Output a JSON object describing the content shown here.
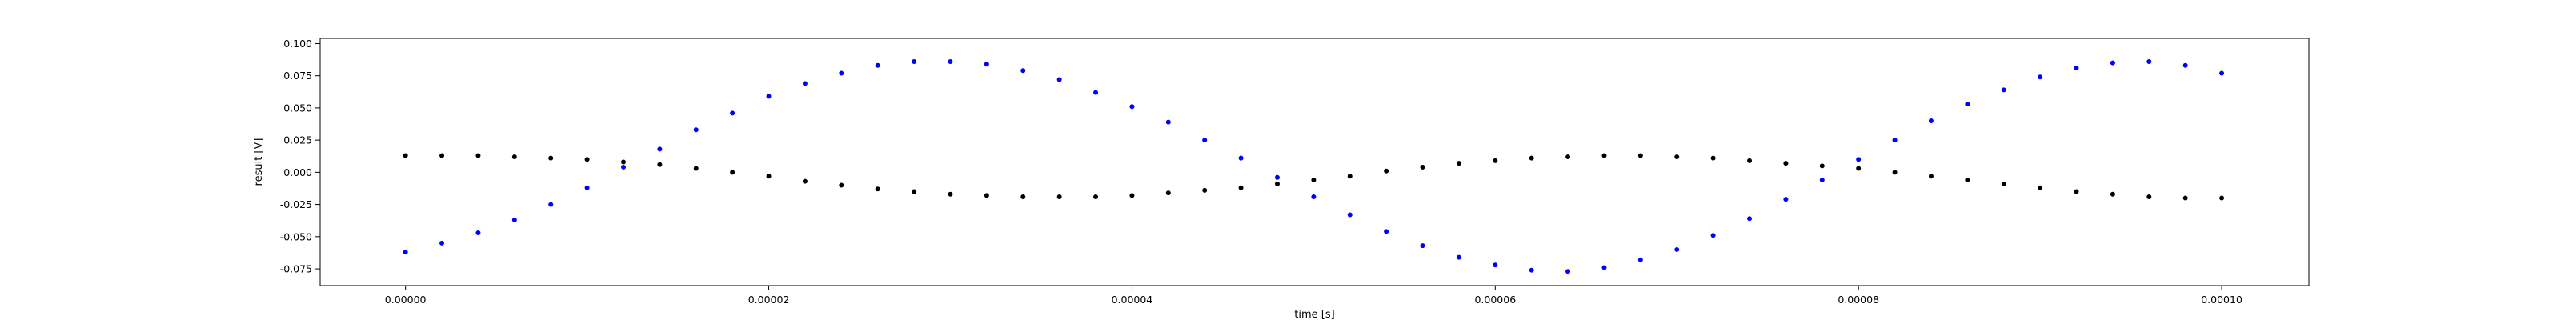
{
  "chart_data": {
    "type": "scatter",
    "title": "",
    "xlabel": "time [s]",
    "ylabel": "result [V]",
    "xlim": [
      -4.7e-06,
      0.0001048
    ],
    "ylim": [
      -0.088,
      0.104
    ],
    "grid": false,
    "x_ticks": [
      0.0,
      2e-05,
      4e-05,
      6e-05,
      8e-05,
      0.0001
    ],
    "x_tick_labels": [
      "0.00000",
      "0.00002",
      "0.00004",
      "0.00006",
      "0.00008",
      "0.00010"
    ],
    "y_ticks": [
      -0.075,
      -0.05,
      -0.025,
      0.0,
      0.025,
      0.05,
      0.075,
      0.1
    ],
    "y_tick_labels": [
      "-0.075",
      "-0.050",
      "-0.025",
      "0.000",
      "0.025",
      "0.050",
      "0.075",
      "0.100"
    ],
    "series": [
      {
        "color": "#0000ff",
        "marker_size": 3,
        "x": [
          0.0,
          2e-06,
          4e-06,
          6e-06,
          8e-06,
          1e-05,
          1.2e-05,
          1.4e-05,
          1.6e-05,
          1.8e-05,
          2e-05,
          2.2e-05,
          2.4e-05,
          2.6e-05,
          2.8e-05,
          3e-05,
          3.2e-05,
          3.4e-05,
          3.6e-05,
          3.8e-05,
          4e-05,
          4.2e-05,
          4.4e-05,
          4.6e-05,
          4.8e-05,
          5e-05,
          5.2e-05,
          5.4e-05,
          5.6e-05,
          5.8e-05,
          6e-05,
          6.2e-05,
          6.4e-05,
          6.6e-05,
          6.8e-05,
          7e-05,
          7.2e-05,
          7.4e-05,
          7.6e-05,
          7.8e-05,
          8e-05,
          8.2e-05,
          8.4e-05,
          8.6e-05,
          8.8e-05,
          9e-05,
          9.2e-05,
          9.4e-05,
          9.6e-05,
          9.8e-05,
          0.0001
        ],
        "y": [
          -0.062,
          -0.055,
          -0.047,
          -0.037,
          -0.025,
          -0.012,
          0.004,
          0.018,
          0.033,
          0.046,
          0.059,
          0.069,
          0.077,
          0.083,
          0.086,
          0.086,
          0.084,
          0.079,
          0.072,
          0.062,
          0.051,
          0.039,
          0.025,
          0.011,
          -0.004,
          -0.019,
          -0.033,
          -0.046,
          -0.057,
          -0.066,
          -0.072,
          -0.076,
          -0.077,
          -0.074,
          -0.068,
          -0.06,
          -0.049,
          -0.036,
          -0.021,
          -0.006,
          0.01,
          0.025,
          0.04,
          0.053,
          0.064,
          0.074,
          0.081,
          0.085,
          0.086,
          0.083,
          0.077
        ]
      },
      {
        "color": "#000000",
        "marker_size": 3,
        "x": [
          0.0,
          2e-06,
          4e-06,
          6e-06,
          8e-06,
          1e-05,
          1.2e-05,
          1.4e-05,
          1.6e-05,
          1.8e-05,
          2e-05,
          2.2e-05,
          2.4e-05,
          2.6e-05,
          2.8e-05,
          3e-05,
          3.2e-05,
          3.4e-05,
          3.6e-05,
          3.8e-05,
          4e-05,
          4.2e-05,
          4.4e-05,
          4.6e-05,
          4.8e-05,
          5e-05,
          5.2e-05,
          5.4e-05,
          5.6e-05,
          5.8e-05,
          6e-05,
          6.2e-05,
          6.4e-05,
          6.6e-05,
          6.8e-05,
          7e-05,
          7.2e-05,
          7.4e-05,
          7.6e-05,
          7.8e-05,
          8e-05,
          8.2e-05,
          8.4e-05,
          8.6e-05,
          8.8e-05,
          9e-05,
          9.2e-05,
          9.4e-05,
          9.6e-05,
          9.8e-05,
          0.0001
        ],
        "y": [
          0.013,
          0.013,
          0.013,
          0.012,
          0.011,
          0.01,
          0.008,
          0.006,
          0.003,
          0.0,
          -0.003,
          -0.007,
          -0.01,
          -0.013,
          -0.015,
          -0.017,
          -0.018,
          -0.019,
          -0.019,
          -0.019,
          -0.018,
          -0.016,
          -0.014,
          -0.012,
          -0.009,
          -0.006,
          -0.003,
          0.001,
          0.004,
          0.007,
          0.009,
          0.011,
          0.012,
          0.013,
          0.013,
          0.012,
          0.011,
          0.009,
          0.007,
          0.005,
          0.003,
          0.0,
          -0.003,
          -0.006,
          -0.009,
          -0.012,
          -0.015,
          -0.017,
          -0.019,
          -0.02,
          -0.02
        ]
      }
    ]
  }
}
